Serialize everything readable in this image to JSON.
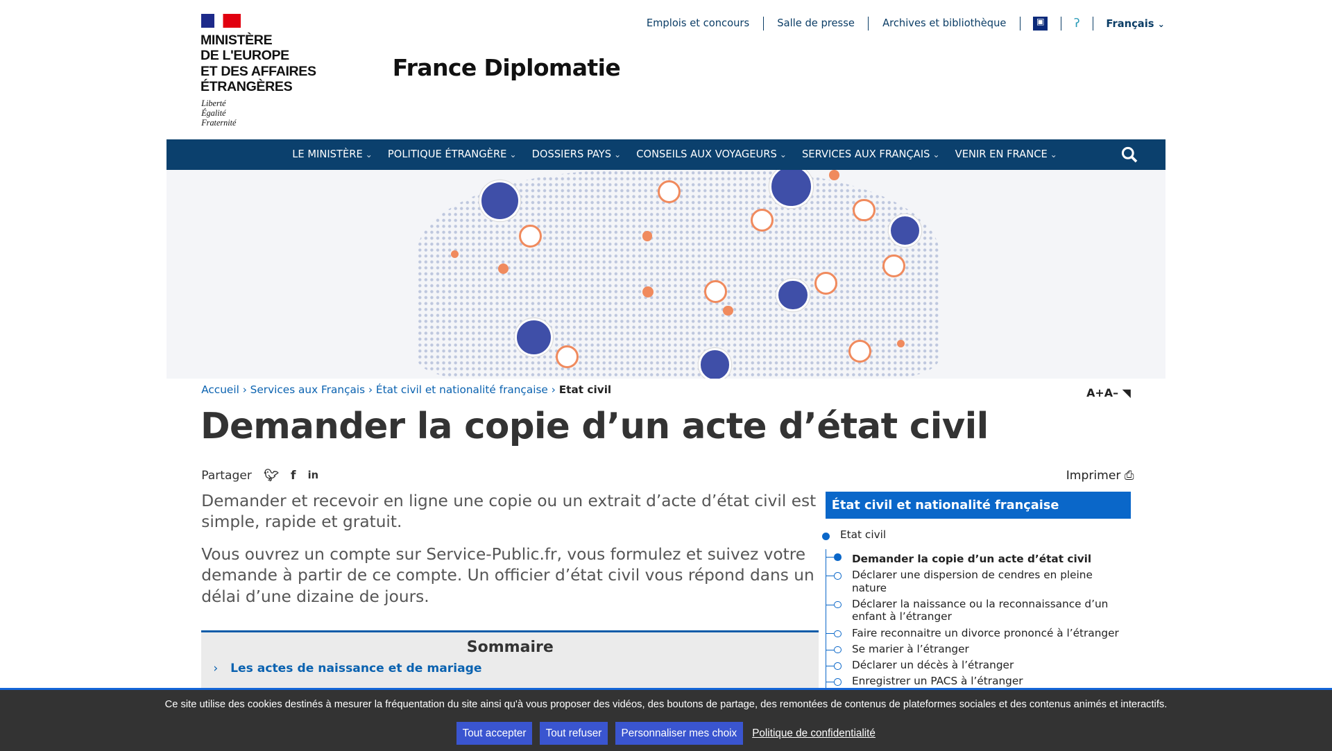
{
  "header": {
    "top_links": [
      "Emplois et concours",
      "Salle de presse",
      "Archives et bibliothèque"
    ],
    "language": "Français",
    "logo_lines": [
      "MINISTÈRE",
      "DE L'EUROPE",
      "ET DES AFFAIRES",
      "ÉTRANGÈRES"
    ],
    "devise": [
      "Liberté",
      "Égalité",
      "Fraternité"
    ],
    "site_title": "France Diplomatie"
  },
  "nav": {
    "items": [
      "LE MINISTÈRE",
      "POLITIQUE ÉTRANGÈRE",
      "DOSSIERS PAYS",
      "CONSEILS AUX VOYAGEURS",
      "SERVICES AUX FRANÇAIS",
      "VENIR EN FRANCE"
    ]
  },
  "breadcrumb": {
    "items": [
      "Accueil",
      "Services aux Français",
      "État civil et nationalité française"
    ],
    "current": "Etat civil"
  },
  "font_controls": {
    "increase": "A+",
    "decrease": "A–"
  },
  "page": {
    "title": "Demander la copie d’un acte d’état civil",
    "share_label": "Partager",
    "print_label": "Imprimer",
    "intro": [
      "Demander et recevoir en ligne une copie ou un extrait d’acte d’état civil est simple, rapide et gratuit.",
      "Vous ouvrez un compte sur Service-Public.fr, vous formulez et suivez votre demande à partir de ce compte. Un officier d’état civil vous répond dans un délai d’une dizaine de jours."
    ],
    "sommaire": {
      "title": "Sommaire",
      "items": [
        "Les actes de naissance et de mariage"
      ]
    }
  },
  "sidebar": {
    "title": "État civil et nationalité française",
    "section": "Etat civil",
    "items": [
      "Demander la copie d’un acte d’état civil",
      "Déclarer une dispersion de cendres en pleine nature",
      "Déclarer la naissance ou la reconnaissance d’un enfant à l’étranger",
      "Faire reconnaitre un divorce prononcé à l’étranger",
      "Se marier à l’étranger",
      "Déclarer un décès à l’étranger",
      "Enregistrer un PACS à l’étranger"
    ],
    "active_index": 0
  },
  "cookie": {
    "text": "Ce site utilise des cookies destinés à mesurer la fréquentation du site ainsi qu'à vous proposer des vidéos, des boutons de partage, des remontées de contenus de plateformes sociales et des contenus animés et interactifs.",
    "accept": "Tout accepter",
    "refuse": "Tout refuser",
    "customize": "Personnaliser mes choix",
    "policy": "Politique de confidentialité"
  },
  "colors": {
    "nav": "#0b406d",
    "link": "#0a62b0",
    "accent": "#0a67c9",
    "cookie_button": "#3a55d0"
  }
}
